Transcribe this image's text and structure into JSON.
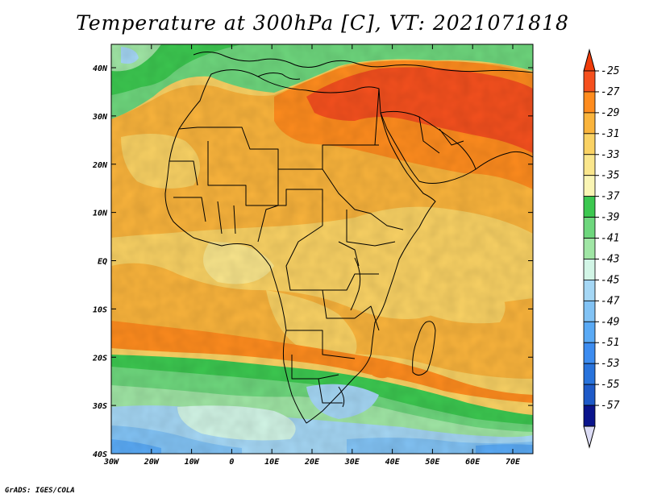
{
  "title": "Temperature at 300hPa [C], VT: 2021071818",
  "credit": "GrADS: IGES/COLA",
  "lat_labels": [
    "40N",
    "30N",
    "20N",
    "10N",
    "EQ",
    "10S",
    "20S",
    "30S",
    "40S"
  ],
  "lon_labels": [
    "30W",
    "20W",
    "10W",
    "0",
    "10E",
    "20E",
    "30E",
    "40E",
    "50E",
    "60E",
    "70E"
  ],
  "colorbar": {
    "labels": [
      "-25",
      "-27",
      "-29",
      "-31",
      "-33",
      "-35",
      "-37",
      "-39",
      "-41",
      "-43",
      "-45",
      "-47",
      "-49",
      "-51",
      "-53",
      "-55",
      "-57"
    ],
    "colors": [
      "#f5501e",
      "#ff8c1e",
      "#fab43c",
      "#fad264",
      "#fae68c",
      "#faf5b4",
      "#3cc850",
      "#6ed77d",
      "#a0e6a5",
      "#d2f5e6",
      "#a5d7f5",
      "#82c3f5",
      "#5aaaf5",
      "#3c8cf0",
      "#2873dc",
      "#1e5ac8",
      "#0a148c"
    ],
    "top_arrow_color": "#f03c0a",
    "bottom_arrow_color": "#dcdcf5"
  }
}
